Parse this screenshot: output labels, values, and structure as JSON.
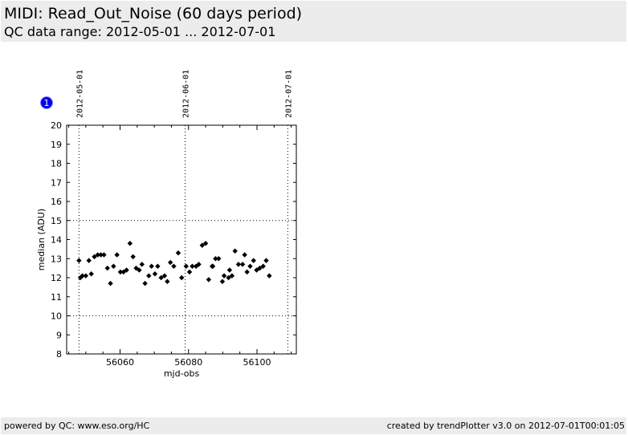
{
  "header": {
    "title": "MIDI: Read_Out_Noise (60 days period)",
    "subtitle": "QC data range: 2012-05-01 ... 2012-07-01"
  },
  "footer": {
    "left": "powered by QC: www.eso.org/HC",
    "right": "created by trendPlotter v3.0 on 2012-07-01T00:01:05"
  },
  "plot_badge": "1",
  "chart_data": {
    "type": "scatter",
    "xlabel": "mjd-obs",
    "ylabel": "median (ADU)",
    "xlim": [
      56044.4,
      56111.5
    ],
    "ylim": [
      8,
      20
    ],
    "x_ticks": [
      56060,
      56080,
      56100
    ],
    "y_ticks": [
      8,
      9,
      10,
      11,
      12,
      13,
      14,
      15,
      16,
      17,
      18,
      19,
      20
    ],
    "hlines": [
      10,
      15
    ],
    "date_lines": [
      {
        "label": "2012-05-01",
        "x": 56048
      },
      {
        "label": "2012-06-01",
        "x": 56079
      },
      {
        "label": "2012-07-01",
        "x": 56109
      }
    ],
    "grid": false,
    "series": [
      {
        "color": "#000000",
        "points": [
          [
            56048.0,
            12.9
          ],
          [
            56048.4,
            12.0
          ],
          [
            56049.0,
            12.1
          ],
          [
            56050.0,
            12.1
          ],
          [
            56050.9,
            12.9
          ],
          [
            56051.6,
            12.2
          ],
          [
            56052.5,
            13.1
          ],
          [
            56053.5,
            13.2
          ],
          [
            56054.4,
            13.2
          ],
          [
            56055.3,
            13.2
          ],
          [
            56056.3,
            12.5
          ],
          [
            56057.2,
            11.7
          ],
          [
            56058.1,
            12.6
          ],
          [
            56059.1,
            13.2
          ],
          [
            56060.1,
            12.3
          ],
          [
            56061.0,
            12.3
          ],
          [
            56061.9,
            12.4
          ],
          [
            56062.9,
            13.8
          ],
          [
            56063.8,
            13.1
          ],
          [
            56064.7,
            12.5
          ],
          [
            56065.6,
            12.4
          ],
          [
            56066.4,
            12.7
          ],
          [
            56067.3,
            11.7
          ],
          [
            56068.4,
            12.1
          ],
          [
            56069.2,
            12.6
          ],
          [
            56070.2,
            12.2
          ],
          [
            56071.0,
            12.6
          ],
          [
            56072.0,
            12.0
          ],
          [
            56073.0,
            12.1
          ],
          [
            56073.8,
            11.8
          ],
          [
            56074.7,
            12.8
          ],
          [
            56075.7,
            12.6
          ],
          [
            56077.0,
            13.3
          ],
          [
            56078.0,
            12.0
          ],
          [
            56079.3,
            12.6
          ],
          [
            56080.3,
            12.3
          ],
          [
            56081.1,
            12.6
          ],
          [
            56082.2,
            12.6
          ],
          [
            56083.0,
            12.7
          ],
          [
            56084.0,
            13.7
          ],
          [
            56085.0,
            13.8
          ],
          [
            56085.9,
            11.9
          ],
          [
            56086.9,
            12.6
          ],
          [
            56087.1,
            12.6
          ],
          [
            56087.9,
            13.0
          ],
          [
            56088.8,
            13.0
          ],
          [
            56089.9,
            11.8
          ],
          [
            56090.4,
            12.1
          ],
          [
            56091.7,
            12.0
          ],
          [
            56092.0,
            12.4
          ],
          [
            56092.7,
            12.1
          ],
          [
            56093.6,
            13.4
          ],
          [
            56094.6,
            12.7
          ],
          [
            56095.8,
            12.7
          ],
          [
            56096.4,
            13.2
          ],
          [
            56097.1,
            12.3
          ],
          [
            56098.0,
            12.6
          ],
          [
            56099.0,
            12.9
          ],
          [
            56099.9,
            12.4
          ],
          [
            56100.8,
            12.5
          ],
          [
            56101.8,
            12.6
          ],
          [
            56102.7,
            12.9
          ],
          [
            56103.6,
            12.1
          ]
        ]
      }
    ]
  }
}
